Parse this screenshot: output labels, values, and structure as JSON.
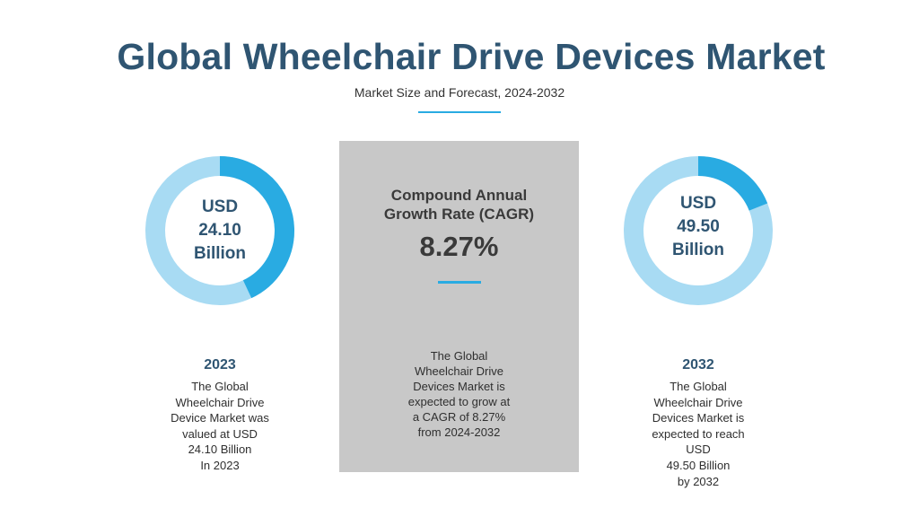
{
  "title": "Global Wheelchair Drive Devices Market",
  "subtitle": "Market Size and Forecast, 2024-2032",
  "colors": {
    "title": "#2f5572",
    "accent": "#29abe2",
    "donut_track": "#a8dbf3",
    "panel": "#c8c8c8"
  },
  "left": {
    "donut_lines": [
      "USD",
      "24.10",
      "Billion"
    ],
    "year": "2023",
    "description": [
      "The Global",
      "Wheelchair Drive",
      "Device Market was",
      "valued at USD",
      "24.10 Billion",
      "In 2023"
    ]
  },
  "center": {
    "cagr_label_line1": "Compound Annual",
    "cagr_label_line2": "Growth Rate (CAGR)",
    "cagr_value": "8.27%",
    "description": [
      "The Global",
      "Wheelchair Drive",
      "Devices Market is",
      "expected to grow at",
      "a CAGR of 8.27%",
      "from 2024-2032"
    ]
  },
  "right": {
    "donut_lines": [
      "USD",
      "49.50",
      "Billion"
    ],
    "year": "2032",
    "description": [
      "The Global",
      "Wheelchair Drive",
      "Devices Market is",
      "expected to reach",
      "USD",
      "49.50 Billion",
      "by 2032"
    ]
  },
  "chart_data": [
    {
      "type": "pie",
      "name": "2023",
      "values": [
        0.43,
        0.57
      ],
      "labels": [
        "highlight",
        "remainder"
      ]
    },
    {
      "type": "pie",
      "name": "2032",
      "values": [
        0.19,
        0.81
      ],
      "labels": [
        "highlight",
        "remainder"
      ]
    }
  ]
}
